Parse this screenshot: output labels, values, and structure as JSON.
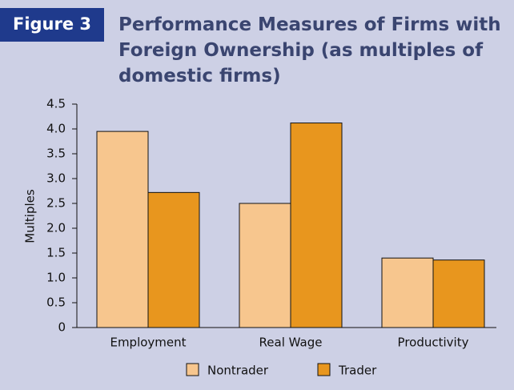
{
  "chart_data": {
    "type": "bar",
    "figure_label": "Figure 3",
    "title": [
      "Performance Measures of Firms with",
      "Foreign Ownership (as multiples of",
      "domestic firms)"
    ],
    "y_label": "Multiples",
    "categories": [
      "Employment",
      "Real Wage",
      "Productivity"
    ],
    "series": [
      {
        "name": "Nontrader",
        "color": "#f7c68e",
        "values": [
          3.95,
          2.5,
          1.4
        ]
      },
      {
        "name": "Trader",
        "color": "#e8961e",
        "values": [
          2.72,
          4.12,
          1.36
        ]
      }
    ],
    "ylim": [
      0,
      4.5
    ],
    "yticks": [
      0,
      0.5,
      {
        "value": 1,
        "label": "1.0"
      },
      1.5,
      {
        "value": 2,
        "label": "2.0"
      },
      2.5,
      {
        "value": 3,
        "label": "3.0"
      },
      3.5,
      {
        "value": 4,
        "label": "4.0"
      },
      4.5
    ],
    "grid": false
  }
}
